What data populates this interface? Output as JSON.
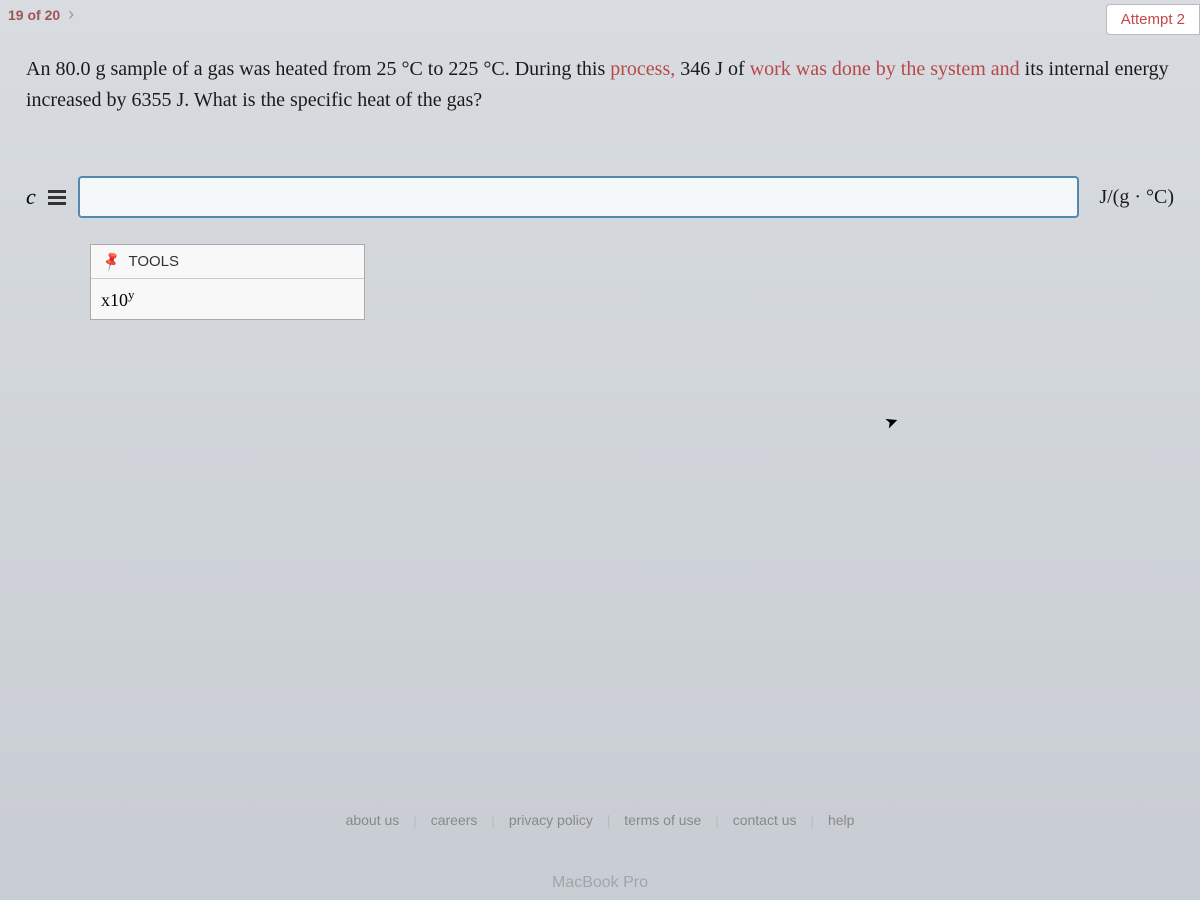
{
  "topbar": {
    "pagination_text": "19 of 20",
    "attempt_label": "Attempt 2"
  },
  "question": {
    "part1": "An 80.0 g sample of a gas was heated from 25 °C to 225 °C. During this ",
    "highlight1": "process,",
    "part2": " 346 J of ",
    "highlight2": "work was done by the system and",
    "part3": " its internal energy increased by 6355 J. What is the specific heat of the gas?"
  },
  "answer": {
    "variable": "c",
    "input_value": "",
    "unit": "J/(g · °C)"
  },
  "tools": {
    "header": "TOOLS",
    "sci_label_base": "x10",
    "sci_label_exp": "y"
  },
  "footer": {
    "links": [
      "about us",
      "careers",
      "privacy policy",
      "terms of use",
      "contact us",
      "help"
    ]
  },
  "laptop": "MacBook Pro"
}
